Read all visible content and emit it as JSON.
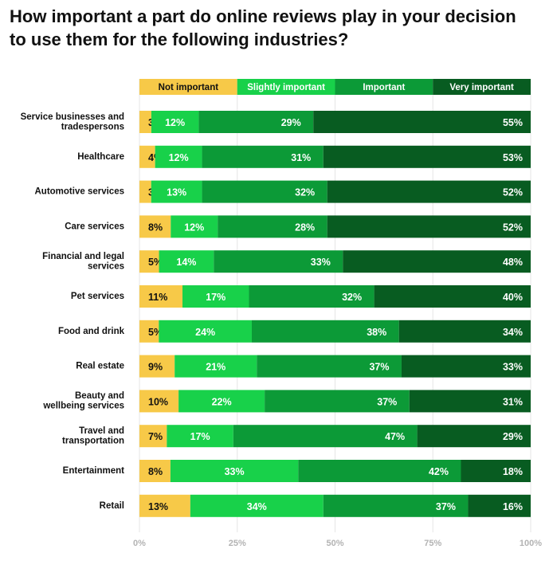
{
  "chart_data": {
    "type": "bar",
    "orientation": "horizontal",
    "stacked": true,
    "title": "How important a part do online reviews play in your decision to use them for the following industries?",
    "categories": [
      [
        "Service businesses and",
        "tradespersons"
      ],
      [
        "Healthcare"
      ],
      [
        "Automotive services"
      ],
      [
        "Care services"
      ],
      [
        "Financial and legal",
        "services"
      ],
      [
        "Pet services"
      ],
      [
        "Food and drink"
      ],
      [
        "Real estate"
      ],
      [
        "Beauty and",
        "wellbeing services"
      ],
      [
        "Travel and",
        "transportation"
      ],
      [
        "Entertainment"
      ],
      [
        "Retail"
      ]
    ],
    "series": [
      {
        "name": "Not important",
        "color": "#f7c948",
        "label_color": "#111111",
        "values": [
          3,
          4,
          3,
          8,
          5,
          11,
          5,
          9,
          10,
          7,
          8,
          13
        ]
      },
      {
        "name": "Slightly important",
        "color": "#18d14a",
        "label_color": "#ffffff",
        "values": [
          12,
          12,
          13,
          12,
          14,
          17,
          24,
          21,
          22,
          17,
          33,
          34
        ]
      },
      {
        "name": "Important",
        "color": "#0c9a37",
        "label_color": "#ffffff",
        "values": [
          29,
          31,
          32,
          28,
          33,
          32,
          38,
          37,
          37,
          47,
          42,
          37
        ]
      },
      {
        "name": "Very important",
        "color": "#085c21",
        "label_color": "#ffffff",
        "values": [
          55,
          53,
          52,
          52,
          48,
          40,
          34,
          33,
          31,
          29,
          18,
          16
        ]
      }
    ],
    "value_suffix": "%",
    "xlim": [
      0,
      100
    ],
    "x_ticks": [
      "0%",
      "25%",
      "50%",
      "75%",
      "100%"
    ],
    "legend_position": "top",
    "grid": true
  }
}
